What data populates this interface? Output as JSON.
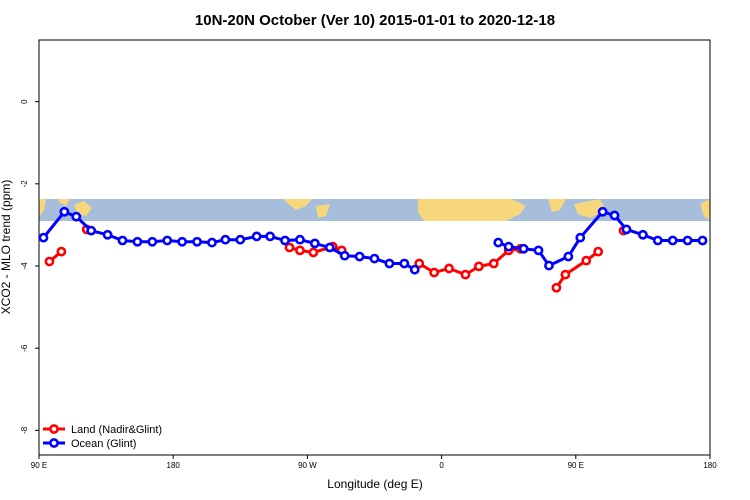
{
  "chart_data": {
    "type": "line",
    "title": "10N-20N October (Ver 10)   2015-01-01 to 2020-12-18",
    "xlabel": "Longitude (deg E)",
    "ylabel": "XCO2 - MLO trend (ppm)",
    "xlim": [
      90,
      540
    ],
    "ylim": [
      -8.6,
      1.5
    ],
    "xticks": [
      {
        "value": 90,
        "label": "90 E"
      },
      180,
      {
        "value": 270,
        "label": "90 W"
      },
      {
        "value": 360,
        "label": "0"
      },
      {
        "value": 450,
        "label": "90 E"
      },
      {
        "value": 540,
        "label": "180"
      }
    ],
    "yticks": [
      0,
      -2,
      -4,
      -6,
      -8
    ],
    "legend": "bottom-left",
    "series": [
      {
        "name": "Land (Nadir&Glint)",
        "color": "#ff0000",
        "x": [
          97,
          105,
          null,
          122,
          null,
          258,
          265,
          274,
          287,
          293,
          null,
          345,
          355,
          365,
          376,
          385,
          395,
          405,
          413,
          null,
          437,
          443,
          457,
          465,
          null,
          482
        ],
        "values": [
          -3.89,
          -3.65,
          null,
          -3.11,
          null,
          -3.55,
          -3.62,
          -3.67,
          -3.53,
          -3.62,
          null,
          -3.94,
          -4.16,
          -4.06,
          -4.21,
          -4.01,
          -3.94,
          -3.62,
          -3.58,
          null,
          -4.53,
          -4.21,
          -3.87,
          -3.65,
          null,
          -3.14
        ]
      },
      {
        "name": "Ocean (Glint)",
        "color": "#0000ff",
        "x": [
          93,
          107,
          115,
          125,
          136,
          146,
          156,
          166,
          176,
          186,
          196,
          206,
          215,
          225,
          236,
          245,
          255,
          265,
          275,
          285,
          295,
          305,
          315,
          325,
          335,
          342,
          null,
          398,
          405,
          415,
          425,
          432,
          445,
          453,
          468,
          476,
          484,
          495,
          505,
          515,
          525,
          535
        ],
        "values": [
          -3.31,
          -2.68,
          -2.8,
          -3.14,
          -3.24,
          -3.38,
          -3.41,
          -3.41,
          -3.38,
          -3.41,
          -3.41,
          -3.43,
          -3.36,
          -3.36,
          -3.28,
          -3.28,
          -3.38,
          -3.36,
          -3.45,
          -3.55,
          -3.75,
          -3.77,
          -3.82,
          -3.94,
          -3.94,
          -4.09,
          null,
          -3.43,
          -3.53,
          -3.58,
          -3.62,
          -3.99,
          -3.77,
          -3.31,
          -2.68,
          -2.77,
          -3.11,
          -3.24,
          -3.38,
          -3.38,
          -3.38,
          -3.38
        ]
      }
    ]
  }
}
